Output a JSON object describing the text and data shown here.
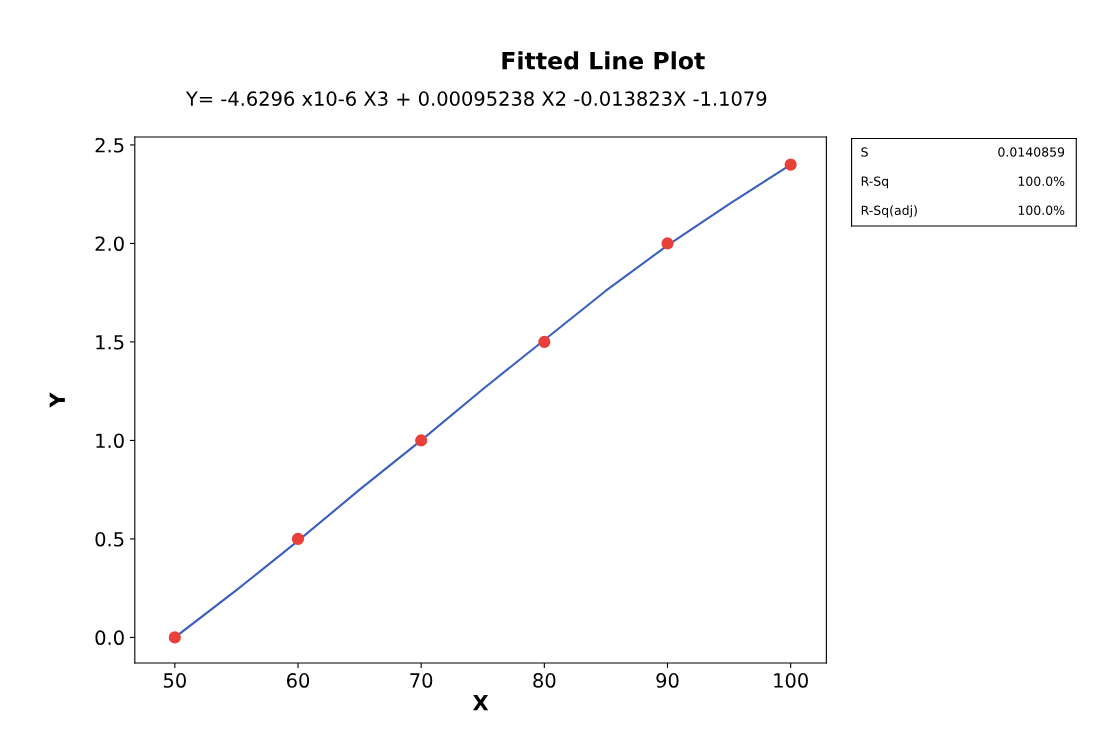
{
  "chart_data": {
    "type": "scatter",
    "title": "Fitted Line Plot",
    "subtitle": "Y= -4.6296 x10-6 X3 + 0.00095238 X2 -0.013823X -1.1079",
    "xlabel": "X",
    "ylabel": "Y",
    "x": [
      50,
      60,
      70,
      80,
      90,
      100
    ],
    "series": [
      {
        "color": "#e8403a",
        "marker": "circle",
        "values": [
          0.0,
          0.5,
          1.0,
          1.5,
          2.0,
          2.4
        ]
      },
      {
        "type": "line",
        "color": "#3a5fbf",
        "line_style": "solid",
        "marker": "none",
        "x": [
          50,
          55,
          60,
          65,
          70,
          75,
          80,
          85,
          90,
          95,
          100
        ],
        "values": [
          0.0,
          0.24,
          0.49,
          0.75,
          1.0,
          1.26,
          1.51,
          1.76,
          1.99,
          2.2,
          2.4
        ]
      }
    ],
    "xlim": [
      46.75,
      102.9
    ],
    "xticks": [
      50,
      60,
      70,
      80,
      90,
      100
    ],
    "ylim": [
      -0.13,
      2.54
    ],
    "yticks": [
      {
        "value": 0,
        "label": "0.0"
      },
      {
        "value": 0.5,
        "label": "0.5"
      },
      {
        "value": 1,
        "label": "1.0"
      },
      {
        "value": 1.5,
        "label": "1.5"
      },
      {
        "value": 2,
        "label": "2.0"
      },
      {
        "value": 2.5,
        "label": "2.5"
      }
    ],
    "grid": false,
    "legend": false,
    "annotations": [
      "S",
      "0.0140859",
      "R-Sq",
      "100.0%",
      "R-Sq(adj)",
      "100.0%"
    ]
  }
}
